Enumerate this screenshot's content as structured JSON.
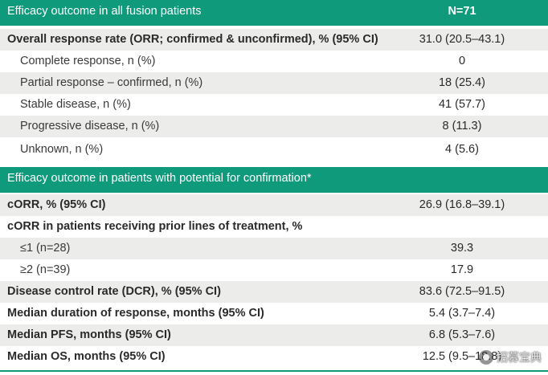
{
  "section1": {
    "header": "Efficacy outcome in all fusion patients",
    "n_label": "N=71",
    "rows": [
      {
        "label": "Overall response rate (ORR; confirmed & unconfirmed), % (95% CI)",
        "value": "31.0 (20.5–43.1)"
      },
      {
        "label": "Complete response, n (%)",
        "value": "0"
      },
      {
        "label": "Partial response – confirmed, n (%)",
        "value": "18 (25.4)"
      },
      {
        "label": "Stable disease, n (%)",
        "value": "41 (57.7)"
      },
      {
        "label": "Progressive disease, n (%)",
        "value": "8 (11.3)"
      },
      {
        "label": "Unknown, n (%)",
        "value": "4 (5.6)"
      }
    ]
  },
  "section2": {
    "header": "Efficacy outcome in patients with potential for confirmation*",
    "rows": [
      {
        "label": "cORR, % (95% CI)",
        "value": "26.9 (16.8–39.1)"
      },
      {
        "label": "cORR in patients receiving prior lines of treatment, %",
        "value": ""
      },
      {
        "label": "≤1 (n=28)",
        "value": "39.3"
      },
      {
        "label": "≥2 (n=39)",
        "value": "17.9"
      },
      {
        "label": "Disease control rate (DCR), % (95% CI)",
        "value": "83.6 (72.5–91.5)"
      },
      {
        "label": "Median duration of response, months (95% CI)",
        "value": "5.4 (3.7–7.4)"
      },
      {
        "label": "Median PFS, months (95% CI)",
        "value": "6.8 (5.3–7.6)"
      },
      {
        "label": "Median OS, months (95% CI)",
        "value": "12.5 (9.5–18.8)"
      }
    ]
  },
  "watermark": {
    "text": "招募宝典",
    "icon": "wechat-icon"
  }
}
